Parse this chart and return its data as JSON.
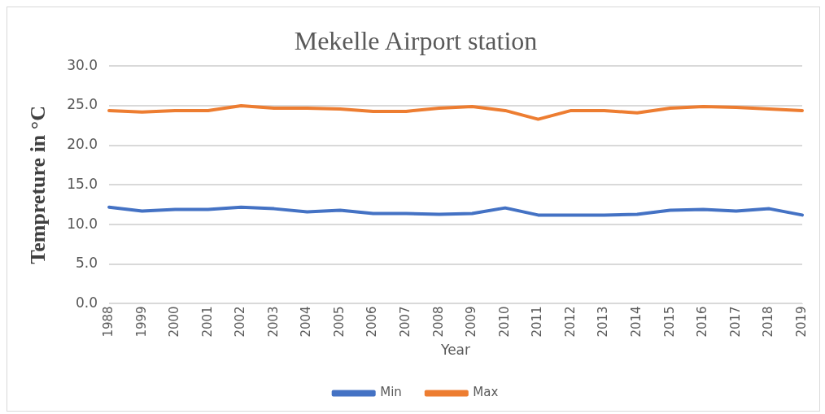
{
  "chart_data": {
    "type": "line",
    "title": "Mekelle Airport station",
    "xlabel": "Year",
    "ylabel": "Tempreture in °C",
    "categories": [
      "1988",
      "1999",
      "2000",
      "2001",
      "2002",
      "2003",
      "2004",
      "2005",
      "2006",
      "2007",
      "2008",
      "2009",
      "2010",
      "2011",
      "2012",
      "2013",
      "2014",
      "2015",
      "2016",
      "2017",
      "2018",
      "2019"
    ],
    "series": [
      {
        "name": "Min",
        "color": "#4472c4",
        "values": [
          12.2,
          11.7,
          11.9,
          11.9,
          12.2,
          12.0,
          11.6,
          11.8,
          11.4,
          11.4,
          11.3,
          11.4,
          12.1,
          11.2,
          11.2,
          11.2,
          11.3,
          11.8,
          11.9,
          11.7,
          12.0,
          11.2
        ]
      },
      {
        "name": "Max",
        "color": "#ed7d31",
        "values": [
          24.4,
          24.2,
          24.4,
          24.4,
          25.0,
          24.7,
          24.7,
          24.6,
          24.3,
          24.3,
          24.7,
          24.9,
          24.4,
          23.3,
          24.4,
          24.4,
          24.1,
          24.7,
          24.9,
          24.8,
          24.6,
          24.4
        ]
      }
    ],
    "ylim": [
      0,
      30
    ],
    "yticks": [
      {
        "value": 0,
        "label": "0.0"
      },
      {
        "value": 5,
        "label": "5.0"
      },
      {
        "value": 10,
        "label": "10.0"
      },
      {
        "value": 15,
        "label": "15.0"
      },
      {
        "value": 20,
        "label": "20.0"
      },
      {
        "value": 25,
        "label": "25.0"
      },
      {
        "value": 30,
        "label": "30.0"
      }
    ],
    "grid": "y",
    "legend": "bottom",
    "marker": "none",
    "line_style": "solid"
  }
}
